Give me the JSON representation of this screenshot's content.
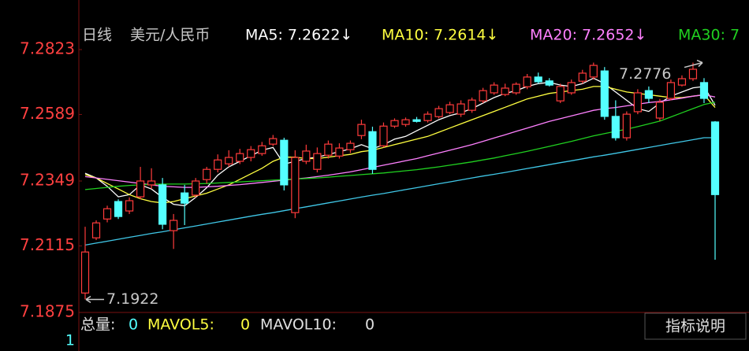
{
  "chart_data": {
    "type": "candlestick",
    "period": "日线",
    "symbol": "美元/人民币",
    "legend": [
      "MA5: 7.2622↓",
      "MA10: 7.2614↓",
      "MA20: 7.2652↓",
      "MA30: 7"
    ],
    "ylim": [
      7.1875,
      7.2823
    ],
    "yticks": [
      7.2823,
      7.2589,
      7.2349,
      7.2115,
      7.1875
    ],
    "up_color": "#ff3b3b",
    "down_color": "#54ffff",
    "open": [
      7.1945,
      7.2144,
      7.2212,
      7.2275,
      7.2241,
      7.2292,
      7.2335,
      7.2335,
      7.217,
      7.2306,
      7.2298,
      7.2354,
      7.2391,
      7.2411,
      7.242,
      7.2434,
      7.2448,
      7.2482,
      7.2496,
      7.2235,
      7.242,
      7.2391,
      7.2442,
      7.2439,
      7.2462,
      7.2513,
      7.2527,
      7.2476,
      7.2547,
      7.2553,
      7.257,
      7.2567,
      7.2581,
      7.2596,
      7.259,
      7.2604,
      7.2638,
      7.2667,
      7.2661,
      7.2667,
      7.2689,
      7.2724,
      7.271,
      7.2638,
      7.2667,
      7.2709,
      7.2724,
      7.2746,
      7.2582,
      7.2505,
      7.2599,
      7.2675,
      7.2576,
      7.2647,
      7.2695,
      7.2718,
      7.2704,
      7.2562
    ],
    "high": [
      7.2184,
      7.2207,
      7.226,
      7.2283,
      7.229,
      7.24,
      7.2395,
      7.236,
      7.223,
      7.2335,
      7.236,
      7.24,
      7.2445,
      7.246,
      7.2465,
      7.2475,
      7.249,
      7.2515,
      7.2505,
      7.246,
      7.248,
      7.247,
      7.2495,
      7.2485,
      7.2495,
      7.257,
      7.2545,
      7.256,
      7.2575,
      7.2578,
      7.258,
      7.26,
      7.262,
      7.2635,
      7.264,
      7.265,
      7.2685,
      7.2705,
      7.27,
      7.2705,
      7.2735,
      7.274,
      7.272,
      7.27,
      7.2715,
      7.275,
      7.2776,
      7.276,
      7.264,
      7.26,
      7.268,
      7.269,
      7.2645,
      7.2715,
      7.273,
      7.2776,
      7.272,
      7.2565
    ],
    "low": [
      7.1922,
      7.2136,
      7.22,
      7.2212,
      7.223,
      7.2283,
      7.232,
      7.2175,
      7.2104,
      7.219,
      7.229,
      7.234,
      7.238,
      7.24,
      7.241,
      7.242,
      7.244,
      7.2475,
      7.2315,
      7.2215,
      7.241,
      7.238,
      7.243,
      7.243,
      7.245,
      7.25,
      7.2375,
      7.247,
      7.254,
      7.2545,
      7.256,
      7.256,
      7.2575,
      7.259,
      7.258,
      7.2595,
      7.263,
      7.266,
      7.2655,
      7.266,
      7.268,
      7.27,
      7.269,
      7.263,
      7.266,
      7.27,
      7.2715,
      7.257,
      7.2495,
      7.2495,
      7.259,
      7.263,
      7.2565,
      7.264,
      7.269,
      7.271,
      7.263,
      7.2065
    ],
    "close": [
      7.2093,
      7.2198,
      7.2249,
      7.2221,
      7.2278,
      7.2349,
      7.2349,
      7.2193,
      7.2207,
      7.2269,
      7.2349,
      7.2391,
      7.2425,
      7.2434,
      7.2448,
      7.2462,
      7.2476,
      7.2502,
      7.2335,
      7.2434,
      7.2457,
      7.2448,
      7.2482,
      7.2468,
      7.2485,
      7.2553,
      7.2391,
      7.2547,
      7.2567,
      7.257,
      7.2564,
      7.259,
      7.261,
      7.2624,
      7.2627,
      7.2641,
      7.2675,
      7.2695,
      7.2684,
      7.2698,
      7.2724,
      7.2707,
      7.2695,
      7.269,
      7.2704,
      7.2738,
      7.2766,
      7.2582,
      7.2505,
      7.259,
      7.2667,
      7.2647,
      7.2633,
      7.2704,
      7.2718,
      7.2752,
      7.2647,
      7.23
    ],
    "series": [
      {
        "name": "MA5",
        "color": "#ffffff",
        "values": [
          7.2377,
          7.236,
          7.233,
          7.2292,
          7.23,
          7.2335,
          7.232,
          7.229,
          7.2265,
          7.226,
          7.229,
          7.2325,
          7.237,
          7.24,
          7.242,
          7.244,
          7.246,
          7.247,
          7.241,
          7.242,
          7.243,
          7.2435,
          7.2445,
          7.2455,
          7.2465,
          7.248,
          7.2465,
          7.248,
          7.25,
          7.251,
          7.253,
          7.255,
          7.257,
          7.2585,
          7.2595,
          7.261,
          7.263,
          7.265,
          7.2665,
          7.2675,
          7.269,
          7.27,
          7.2705,
          7.2695,
          7.269,
          7.27,
          7.272,
          7.27,
          7.267,
          7.264,
          7.261,
          7.26,
          7.263,
          7.2655,
          7.267,
          7.2685,
          7.269,
          7.2622
        ]
      },
      {
        "name": "MA10",
        "color": "#ffff40",
        "values": [
          7.2372,
          7.236,
          7.234,
          7.232,
          7.23,
          7.2285,
          7.2275,
          7.227,
          7.2275,
          7.2285,
          7.2295,
          7.2305,
          7.232,
          7.2335,
          7.2355,
          7.2375,
          7.2395,
          7.242,
          7.2435,
          7.2435,
          7.243,
          7.243,
          7.2435,
          7.244,
          7.2445,
          7.2455,
          7.246,
          7.247,
          7.248,
          7.249,
          7.25,
          7.251,
          7.2525,
          7.254,
          7.2555,
          7.257,
          7.2585,
          7.26,
          7.2615,
          7.263,
          7.2645,
          7.2655,
          7.2665,
          7.267,
          7.2675,
          7.268,
          7.269,
          7.269,
          7.268,
          7.267,
          7.2665,
          7.266,
          7.2655,
          7.265,
          7.265,
          7.2655,
          7.266,
          7.2614
        ]
      },
      {
        "name": "MA20",
        "color": "#ff80ff",
        "values": [
          7.2365,
          7.236,
          7.2355,
          7.235,
          7.2345,
          7.234,
          7.2335,
          7.233,
          7.2328,
          7.2326,
          7.2326,
          7.2328,
          7.233,
          7.2333,
          7.2336,
          7.234,
          7.2344,
          7.2348,
          7.2352,
          7.2356,
          7.236,
          7.2365,
          7.237,
          7.2376,
          7.2382,
          7.239,
          7.2398,
          7.2406,
          7.2414,
          7.2422,
          7.243,
          7.244,
          7.245,
          7.246,
          7.247,
          7.248,
          7.2492,
          7.2504,
          7.2516,
          7.2528,
          7.254,
          7.2552,
          7.2564,
          7.2574,
          7.2584,
          7.2594,
          7.2604,
          7.261,
          7.2614,
          7.262,
          7.2626,
          7.2632,
          7.2636,
          7.2642,
          7.2648,
          7.2655,
          7.266,
          7.2652
        ]
      },
      {
        "name": "MA30",
        "color": "#20d020",
        "values": [
          7.2318,
          7.2322,
          7.2326,
          7.233,
          7.2333,
          7.2335,
          7.2337,
          7.2338,
          7.2338,
          7.2338,
          7.2339,
          7.234,
          7.2342,
          7.2344,
          7.2346,
          7.2348,
          7.235,
          7.2352,
          7.2354,
          7.2356,
          7.2358,
          7.236,
          7.2363,
          7.2366,
          7.2369,
          7.2372,
          7.2375,
          7.2378,
          7.2382,
          7.2386,
          7.239,
          7.2395,
          7.24,
          7.2406,
          7.2412,
          7.2418,
          7.2425,
          7.2432,
          7.244,
          7.2448,
          7.2456,
          7.2465,
          7.2474,
          7.2483,
          7.2492,
          7.2502,
          7.2512,
          7.252,
          7.2528,
          7.2536,
          7.2545,
          7.2555,
          7.2565,
          7.258,
          7.2595,
          7.261,
          7.2625,
          7.2633
        ]
      },
      {
        "color": "#40c8e8",
        "values": [
          7.2118,
          7.2125,
          7.2132,
          7.2139,
          7.2146,
          7.2153,
          7.216,
          7.2166,
          7.2173,
          7.218,
          7.2187,
          7.2194,
          7.2201,
          7.2208,
          7.2215,
          7.2222,
          7.2229,
          7.2235,
          7.2242,
          7.2249,
          7.2256,
          7.2263,
          7.227,
          7.2277,
          7.2284,
          7.2291,
          7.2298,
          7.2304,
          7.2311,
          7.2318,
          7.2325,
          7.2332,
          7.2339,
          7.2346,
          7.2353,
          7.236,
          7.2367,
          7.2373,
          7.238,
          7.2387,
          7.2394,
          7.2401,
          7.2408,
          7.2415,
          7.2422,
          7.2429,
          7.2436,
          7.2442,
          7.2449,
          7.2456,
          7.2463,
          7.247,
          7.2477,
          7.2484,
          7.2491,
          7.2498,
          7.2505,
          7.2505
        ]
      }
    ],
    "high_label": 7.2776,
    "low_label": 7.1922,
    "volume": {
      "label": "总量:",
      "value": 0,
      "mavol5_label": "MAVOL5:",
      "mavol5": 0,
      "mavol10_label": "MAVOL10:",
      "mavol10": 0,
      "axis_label": "1"
    },
    "button": "指标说明"
  }
}
